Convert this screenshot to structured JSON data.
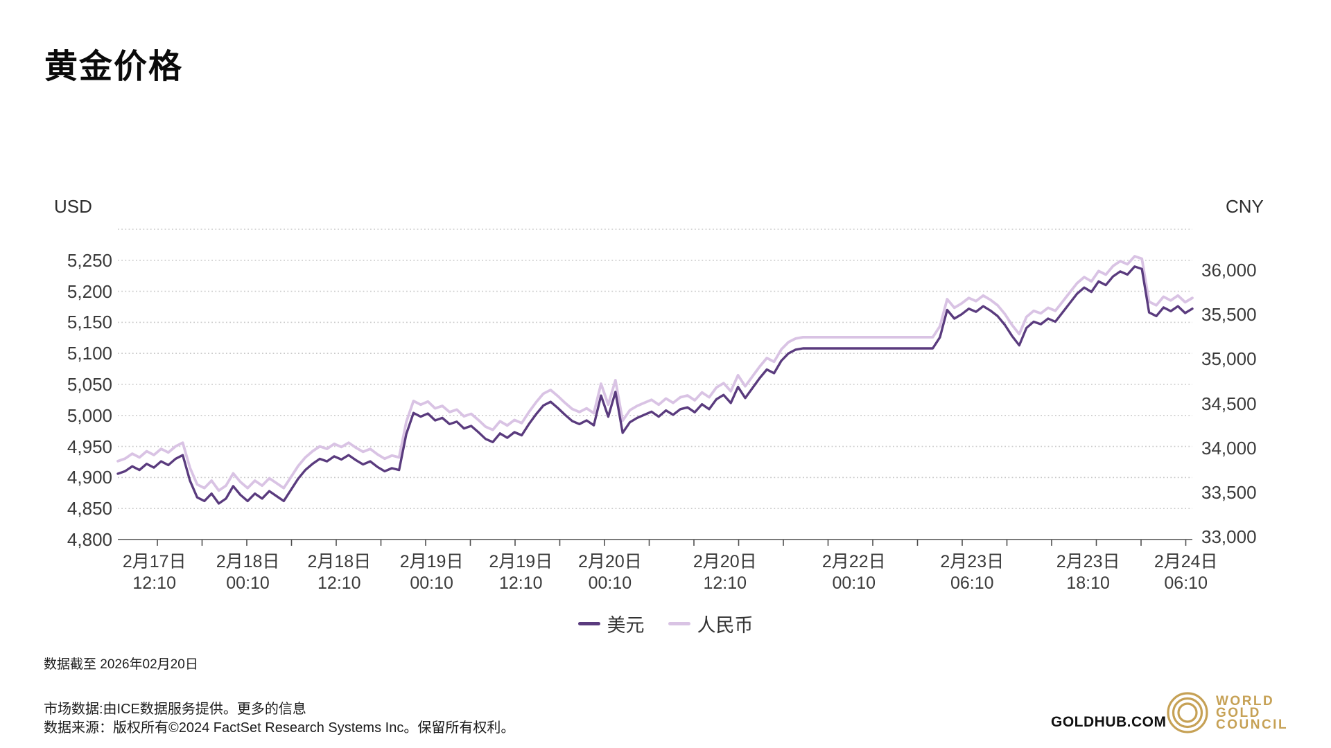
{
  "title": "黄金价格",
  "axes": {
    "left_title": "USD",
    "right_title": "CNY",
    "left_ticks": [
      {
        "label": "4,800",
        "value": 4800
      },
      {
        "label": "4,850",
        "value": 4850
      },
      {
        "label": "4,900",
        "value": 4900
      },
      {
        "label": "4,950",
        "value": 4950
      },
      {
        "label": "5,000",
        "value": 5000
      },
      {
        "label": "5,050",
        "value": 5050
      },
      {
        "label": "5,100",
        "value": 5100
      },
      {
        "label": "5,150",
        "value": 5150
      },
      {
        "label": "5,200",
        "value": 5200
      },
      {
        "label": "5,250",
        "value": 5250
      }
    ],
    "right_ticks": [
      {
        "label": "33,000",
        "value": 33000
      },
      {
        "label": "33,500",
        "value": 33500
      },
      {
        "label": "34,000",
        "value": 34000
      },
      {
        "label": "34,500",
        "value": 34500
      },
      {
        "label": "35,000",
        "value": 35000
      },
      {
        "label": "35,500",
        "value": 35500
      },
      {
        "label": "36,000",
        "value": 36000
      }
    ]
  },
  "chart_data": {
    "type": "line",
    "title": "黄金价格",
    "x_axis_kind": "time",
    "x_labels": [
      {
        "date": "2月17日",
        "time": "12:10",
        "frac": 0.034
      },
      {
        "date": "2月18日",
        "time": "00:10",
        "frac": 0.121
      },
      {
        "date": "2月18日",
        "time": "12:10",
        "frac": 0.206
      },
      {
        "date": "2月19日",
        "time": "00:10",
        "frac": 0.292
      },
      {
        "date": "2月19日",
        "time": "12:10",
        "frac": 0.375
      },
      {
        "date": "2月20日",
        "time": "00:10",
        "frac": 0.458
      },
      {
        "date": "2月20日",
        "time": "12:10",
        "frac": 0.565
      },
      {
        "date": "2月22日",
        "time": "00:10",
        "frac": 0.685
      },
      {
        "date": "2月23日",
        "time": "06:10",
        "frac": 0.795
      },
      {
        "date": "2月23日",
        "time": "18:10",
        "frac": 0.903
      },
      {
        "date": "2月24日",
        "time": "06:10",
        "frac": 0.994
      }
    ],
    "usd_axis": {
      "min": 4800,
      "max": 5300,
      "tick_step": 50,
      "labeled_min": 4800,
      "labeled_max": 5250
    },
    "cny_axis": {
      "min": 33000,
      "max": 36450,
      "tick_step": 500,
      "labeled_max": 36000
    },
    "grid": "dotted-horizontal",
    "legend_position": "bottom-center",
    "series": [
      {
        "name": "美元",
        "axis": "USD",
        "color": "#5a3b7e",
        "values": [
          4906,
          4910,
          4918,
          4912,
          4922,
          4916,
          4926,
          4920,
          4930,
          4936,
          4895,
          4868,
          4862,
          4874,
          4858,
          4866,
          4886,
          4872,
          4862,
          4874,
          4866,
          4878,
          4870,
          4862,
          4880,
          4898,
          4912,
          4922,
          4930,
          4926,
          4934,
          4929,
          4936,
          4928,
          4921,
          4926,
          4917,
          4910,
          4915,
          4912,
          4970,
          5004,
          4998,
          5003,
          4992,
          4996,
          4986,
          4990,
          4979,
          4983,
          4973,
          4962,
          4957,
          4971,
          4964,
          4973,
          4968,
          4986,
          5002,
          5016,
          5022,
          5012,
          5001,
          4991,
          4986,
          4992,
          4984,
          5032,
          4998,
          5038,
          4972,
          4989,
          4996,
          5001,
          5006,
          4998,
          5008,
          5001,
          5010,
          5013,
          5005,
          5018,
          5010,
          5026,
          5033,
          5020,
          5046,
          5028,
          5044,
          5060,
          5074,
          5068,
          5088,
          5100,
          5106,
          5108,
          5108,
          5108,
          5108,
          5108,
          5108,
          5108,
          5108,
          5108,
          5108,
          5108,
          5108,
          5108,
          5108,
          5108,
          5108,
          5108,
          5108,
          5108,
          5126,
          5170,
          5156,
          5163,
          5172,
          5167,
          5176,
          5169,
          5160,
          5146,
          5128,
          5113,
          5141,
          5151,
          5147,
          5156,
          5151,
          5166,
          5181,
          5196,
          5206,
          5199,
          5216,
          5210,
          5224,
          5232,
          5227,
          5240,
          5236,
          5166,
          5160,
          5174,
          5168,
          5176,
          5165,
          5172
        ]
      },
      {
        "name": "人民币",
        "axis": "CNY",
        "color": "#d9c3e4",
        "values": [
          33851,
          33879,
          33934,
          33893,
          33962,
          33920,
          33989,
          33948,
          34017,
          34058,
          33776,
          33589,
          33548,
          33631,
          33520,
          33575,
          33713,
          33617,
          33548,
          33631,
          33575,
          33658,
          33603,
          33548,
          33672,
          33796,
          33893,
          33962,
          34017,
          33989,
          34045,
          34010,
          34058,
          34003,
          33955,
          33989,
          33927,
          33879,
          33914,
          33893,
          34293,
          34528,
          34486,
          34521,
          34445,
          34472,
          34403,
          34431,
          34355,
          34383,
          34314,
          34238,
          34203,
          34300,
          34252,
          34314,
          34279,
          34403,
          34514,
          34610,
          34652,
          34583,
          34507,
          34438,
          34403,
          34445,
          34390,
          34721,
          34486,
          34762,
          34307,
          34424,
          34472,
          34507,
          34541,
          34486,
          34555,
          34507,
          34569,
          34590,
          34535,
          34624,
          34569,
          34679,
          34728,
          34638,
          34817,
          34693,
          34804,
          34914,
          35011,
          34969,
          35107,
          35190,
          35231,
          35245,
          35245,
          35245,
          35245,
          35245,
          35245,
          35245,
          35245,
          35245,
          35245,
          35245,
          35245,
          35245,
          35245,
          35245,
          35245,
          35245,
          35245,
          35245,
          35369,
          35673,
          35576,
          35625,
          35687,
          35652,
          35714,
          35666,
          35604,
          35507,
          35383,
          35280,
          35473,
          35542,
          35514,
          35576,
          35542,
          35645,
          35749,
          35852,
          35921,
          35873,
          35990,
          35949,
          36046,
          36101,
          36066,
          36156,
          36128,
          35645,
          35604,
          35701,
          35659,
          35714,
          35639,
          35687
        ]
      }
    ]
  },
  "legend": [
    {
      "label": "美元",
      "color": "#5a3b7e"
    },
    {
      "label": "人民币",
      "color": "#d9c3e4"
    }
  ],
  "footer": {
    "as_of": "数据截至 2026年02月20日",
    "market_prefix": "市场数据:由ICE数据服务提供。",
    "market_link": "更多的信息",
    "source": "数据来源：版权所有©2024 FactSet Research Systems Inc。保留所有权利。",
    "goldhub": "GOLDHUB.COM",
    "logo_lines": [
      "WORLD",
      "GOLD",
      "COUNCIL"
    ]
  },
  "colors": {
    "usd_line": "#5a3b7e",
    "cny_line": "#d9c3e4",
    "grid": "#c9c9c9",
    "axis": "#4f4f4f",
    "tick_text": "#3a3a3a",
    "gold_brand": "#c6a155"
  }
}
